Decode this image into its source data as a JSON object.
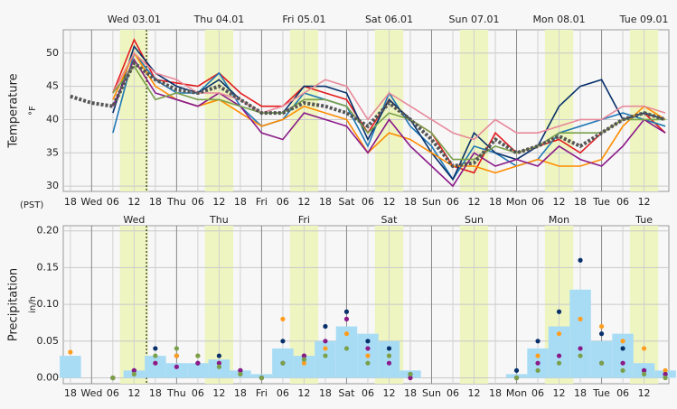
{
  "chart_data": [
    {
      "type": "line",
      "title_y": "Temperature",
      "unit": "°F",
      "timezone": "(PST)",
      "now": 15.5,
      "daylight": [
        [
          8,
          16
        ],
        [
          32,
          40
        ],
        [
          56,
          64
        ],
        [
          80,
          88
        ],
        [
          104,
          112
        ],
        [
          128,
          136
        ],
        [
          152,
          160
        ]
      ],
      "day_labels": [
        {
          "value": 12,
          "label": "Wed 03.01"
        },
        {
          "value": 36,
          "label": "Thu 04.01"
        },
        {
          "value": 60,
          "label": "Fri 05.01"
        },
        {
          "value": 84,
          "label": "Sat 06.01"
        },
        {
          "value": 108,
          "label": "Sun 07.01"
        },
        {
          "value": 132,
          "label": "Mon 08.01"
        },
        {
          "value": 156,
          "label": "Tue 09.01"
        }
      ],
      "xlim": [
        -8,
        163
      ],
      "xticks": [
        {
          "value": -6,
          "label": "18"
        },
        {
          "value": 0,
          "label": "Wed"
        },
        {
          "value": 6,
          "label": "06"
        },
        {
          "value": 12,
          "label": "12"
        },
        {
          "value": 18,
          "label": "18"
        },
        {
          "value": 24,
          "label": "Thu"
        },
        {
          "value": 30,
          "label": "06"
        },
        {
          "value": 36,
          "label": "12"
        },
        {
          "value": 42,
          "label": "18"
        },
        {
          "value": 48,
          "label": "Fri"
        },
        {
          "value": 54,
          "label": "06"
        },
        {
          "value": 60,
          "label": "12"
        },
        {
          "value": 66,
          "label": "18"
        },
        {
          "value": 72,
          "label": "Sat"
        },
        {
          "value": 78,
          "label": "06"
        },
        {
          "value": 84,
          "label": "12"
        },
        {
          "value": 90,
          "label": "18"
        },
        {
          "value": 96,
          "label": "Sun"
        },
        {
          "value": 102,
          "label": "06"
        },
        {
          "value": 108,
          "label": "12"
        },
        {
          "value": 114,
          "label": "18"
        },
        {
          "value": 120,
          "label": "Mon"
        },
        {
          "value": 126,
          "label": "06"
        },
        {
          "value": 132,
          "label": "12"
        },
        {
          "value": 138,
          "label": "18"
        },
        {
          "value": 144,
          "label": "Tue"
        },
        {
          "value": 150,
          "label": "06"
        },
        {
          "value": 156,
          "label": "12"
        }
      ],
      "ylim": [
        29.2,
        53.5
      ],
      "yticks": [
        30,
        35,
        40,
        45,
        50
      ],
      "x": [
        -6,
        0,
        6,
        12,
        18,
        24,
        30,
        36,
        42,
        48,
        54,
        60,
        66,
        72,
        78,
        84,
        90,
        96,
        102,
        108,
        114,
        120,
        126,
        132,
        138,
        144,
        150,
        156,
        162
      ],
      "series": [
        {
          "color": "#e41a1c",
          "values": [
            null,
            null,
            44,
            52,
            46,
            45.5,
            45,
            47,
            44,
            42,
            42,
            45,
            44,
            43,
            38,
            43,
            40,
            38,
            33,
            32,
            38,
            35,
            36,
            37,
            35,
            38,
            40,
            41,
            38
          ]
        },
        {
          "color": "#1f78b4",
          "values": [
            null,
            null,
            38,
            50,
            46,
            44,
            44,
            47,
            42,
            39,
            40,
            44,
            43,
            42,
            36,
            44,
            39,
            36,
            31,
            36,
            35,
            33,
            34,
            38,
            39,
            40,
            41,
            40,
            39
          ]
        },
        {
          "color": "#08306b",
          "values": [
            null,
            null,
            41,
            51,
            47,
            45,
            44,
            46,
            43,
            41,
            41,
            45,
            45,
            44,
            37,
            43,
            40,
            35,
            31,
            38,
            35,
            34,
            36,
            42,
            45,
            46,
            40,
            41,
            40
          ]
        },
        {
          "color": "#ff8c00",
          "values": [
            null,
            null,
            43,
            50,
            45,
            43,
            42,
            43,
            41,
            39,
            40,
            42,
            41,
            40,
            35,
            38,
            37,
            35,
            33,
            33,
            32,
            33,
            34,
            33,
            33,
            34,
            39,
            42,
            40
          ]
        },
        {
          "color": "#8b1a89",
          "values": [
            null,
            null,
            42,
            49,
            44,
            43,
            42,
            44,
            42,
            38,
            37,
            41,
            40,
            39,
            35,
            40,
            36,
            33,
            30,
            35,
            33,
            34,
            33,
            36,
            34,
            33,
            36,
            40,
            38
          ]
        },
        {
          "color": "#e8899a",
          "values": [
            null,
            null,
            44,
            50,
            47,
            46,
            44,
            44,
            43,
            41,
            42,
            44,
            46,
            45,
            40,
            44,
            42,
            40,
            38,
            37,
            40,
            38,
            38,
            39,
            40,
            40,
            42,
            42,
            41
          ]
        },
        {
          "color": "#7aa04a",
          "values": [
            null,
            null,
            44,
            48,
            43,
            44,
            43,
            43,
            42,
            41,
            41,
            43,
            43,
            42,
            38,
            41,
            40,
            38,
            34,
            34,
            36,
            35,
            36,
            38,
            38,
            38,
            40,
            40,
            40
          ]
        },
        {
          "color": "#555555",
          "dashed": true,
          "values": [
            43.5,
            42.5,
            42,
            48.5,
            46,
            44.5,
            44,
            45,
            43,
            41,
            41,
            42.5,
            42,
            41,
            39,
            42.5,
            40,
            37,
            33,
            33.5,
            37,
            35,
            36,
            37.5,
            36,
            38,
            40,
            41,
            40
          ]
        }
      ]
    },
    {
      "type": "bar",
      "title_y": "Precipitation",
      "unit": "in/h",
      "now": 15.5,
      "daylight": [
        [
          8,
          16
        ],
        [
          32,
          40
        ],
        [
          56,
          64
        ],
        [
          80,
          88
        ],
        [
          104,
          112
        ],
        [
          128,
          136
        ],
        [
          152,
          160
        ]
      ],
      "day_labels": [
        {
          "value": 12,
          "label": "Wed"
        },
        {
          "value": 36,
          "label": "Thu"
        },
        {
          "value": 60,
          "label": "Fri"
        },
        {
          "value": 84,
          "label": "Sat"
        },
        {
          "value": 108,
          "label": "Sun"
        },
        {
          "value": 132,
          "label": "Mon"
        },
        {
          "value": 156,
          "label": "Tue"
        }
      ],
      "xlim": [
        -8,
        163
      ],
      "xticks": [
        {
          "value": -6,
          "label": "18"
        },
        {
          "value": 0,
          "label": "Wed"
        },
        {
          "value": 6,
          "label": "06"
        },
        {
          "value": 12,
          "label": "12"
        },
        {
          "value": 18,
          "label": "18"
        },
        {
          "value": 24,
          "label": "Thu"
        },
        {
          "value": 30,
          "label": "06"
        },
        {
          "value": 36,
          "label": "12"
        },
        {
          "value": 42,
          "label": "18"
        },
        {
          "value": 48,
          "label": "Fri"
        },
        {
          "value": 54,
          "label": "06"
        },
        {
          "value": 60,
          "label": "12"
        },
        {
          "value": 66,
          "label": "18"
        },
        {
          "value": 72,
          "label": "Sat"
        },
        {
          "value": 78,
          "label": "06"
        },
        {
          "value": 84,
          "label": "12"
        },
        {
          "value": 90,
          "label": "18"
        },
        {
          "value": 96,
          "label": "Sun"
        },
        {
          "value": 102,
          "label": "06"
        },
        {
          "value": 108,
          "label": "12"
        },
        {
          "value": 114,
          "label": "18"
        },
        {
          "value": 120,
          "label": "Mon"
        },
        {
          "value": 126,
          "label": "06"
        },
        {
          "value": 132,
          "label": "12"
        },
        {
          "value": 138,
          "label": "18"
        },
        {
          "value": 144,
          "label": "Tue"
        },
        {
          "value": 150,
          "label": "06"
        },
        {
          "value": 156,
          "label": "12"
        }
      ],
      "ylim": [
        -0.008,
        0.207
      ],
      "yticks": [
        {
          "value": 0,
          "label": "0.00"
        },
        {
          "value": 0.05,
          "label": "0.05"
        },
        {
          "value": 0.1,
          "label": "0.10"
        },
        {
          "value": 0.15,
          "label": "0.15"
        },
        {
          "value": 0.2,
          "label": "0.20"
        }
      ],
      "x": [
        -6,
        0,
        6,
        12,
        18,
        24,
        30,
        36,
        42,
        48,
        54,
        60,
        66,
        72,
        78,
        84,
        90,
        96,
        102,
        108,
        114,
        120,
        126,
        132,
        138,
        144,
        150,
        156,
        162
      ],
      "series": [
        {
          "style": "bar",
          "color": "#a8dcf5",
          "values": [
            0.03,
            0,
            0,
            0.01,
            0.03,
            0.02,
            0.02,
            0.025,
            0.01,
            0.005,
            0.04,
            0.03,
            0.05,
            0.07,
            0.06,
            0.05,
            0.01,
            0,
            0,
            0,
            0,
            0.005,
            0.04,
            0.07,
            0.12,
            0.05,
            0.06,
            0.02,
            0.01
          ]
        },
        {
          "style": "dots",
          "color": "#08306b",
          "values": [
            null,
            null,
            0,
            0.01,
            0.04,
            0.03,
            0.02,
            0.03,
            0.01,
            0,
            0.05,
            0.03,
            0.07,
            0.09,
            0.05,
            0.04,
            0.005,
            null,
            null,
            null,
            null,
            0.01,
            0.05,
            0.09,
            0.16,
            0.06,
            0.04,
            0.01,
            0.005
          ]
        },
        {
          "style": "dots",
          "color": "#ff9d1e",
          "values": [
            0.035,
            null,
            0,
            0.005,
            0.02,
            0.03,
            0.03,
            0.02,
            0.005,
            0,
            0.08,
            0.02,
            0.04,
            0.06,
            0.03,
            0.03,
            0,
            null,
            null,
            null,
            null,
            0,
            0.03,
            0.06,
            0.08,
            0.07,
            0.05,
            0.04,
            0.01
          ]
        },
        {
          "style": "dots",
          "color": "#8b1a89",
          "values": [
            null,
            null,
            0,
            0.01,
            0.02,
            0.015,
            0.02,
            0.02,
            0.01,
            0,
            0.02,
            0.03,
            0.05,
            0.08,
            0.04,
            0.02,
            0,
            null,
            null,
            null,
            null,
            0,
            0.02,
            0.03,
            0.04,
            0.02,
            0.02,
            0.01,
            0.005
          ]
        },
        {
          "style": "dots",
          "color": "#7aa04a",
          "values": [
            null,
            null,
            0,
            0.005,
            0.03,
            0.04,
            0.03,
            0.015,
            0.005,
            0,
            0.02,
            0.025,
            0.03,
            0.04,
            0.02,
            0.03,
            0.005,
            null,
            null,
            null,
            null,
            0,
            0.01,
            0.02,
            0.03,
            0.02,
            0.01,
            0.005,
            0
          ]
        }
      ]
    }
  ]
}
